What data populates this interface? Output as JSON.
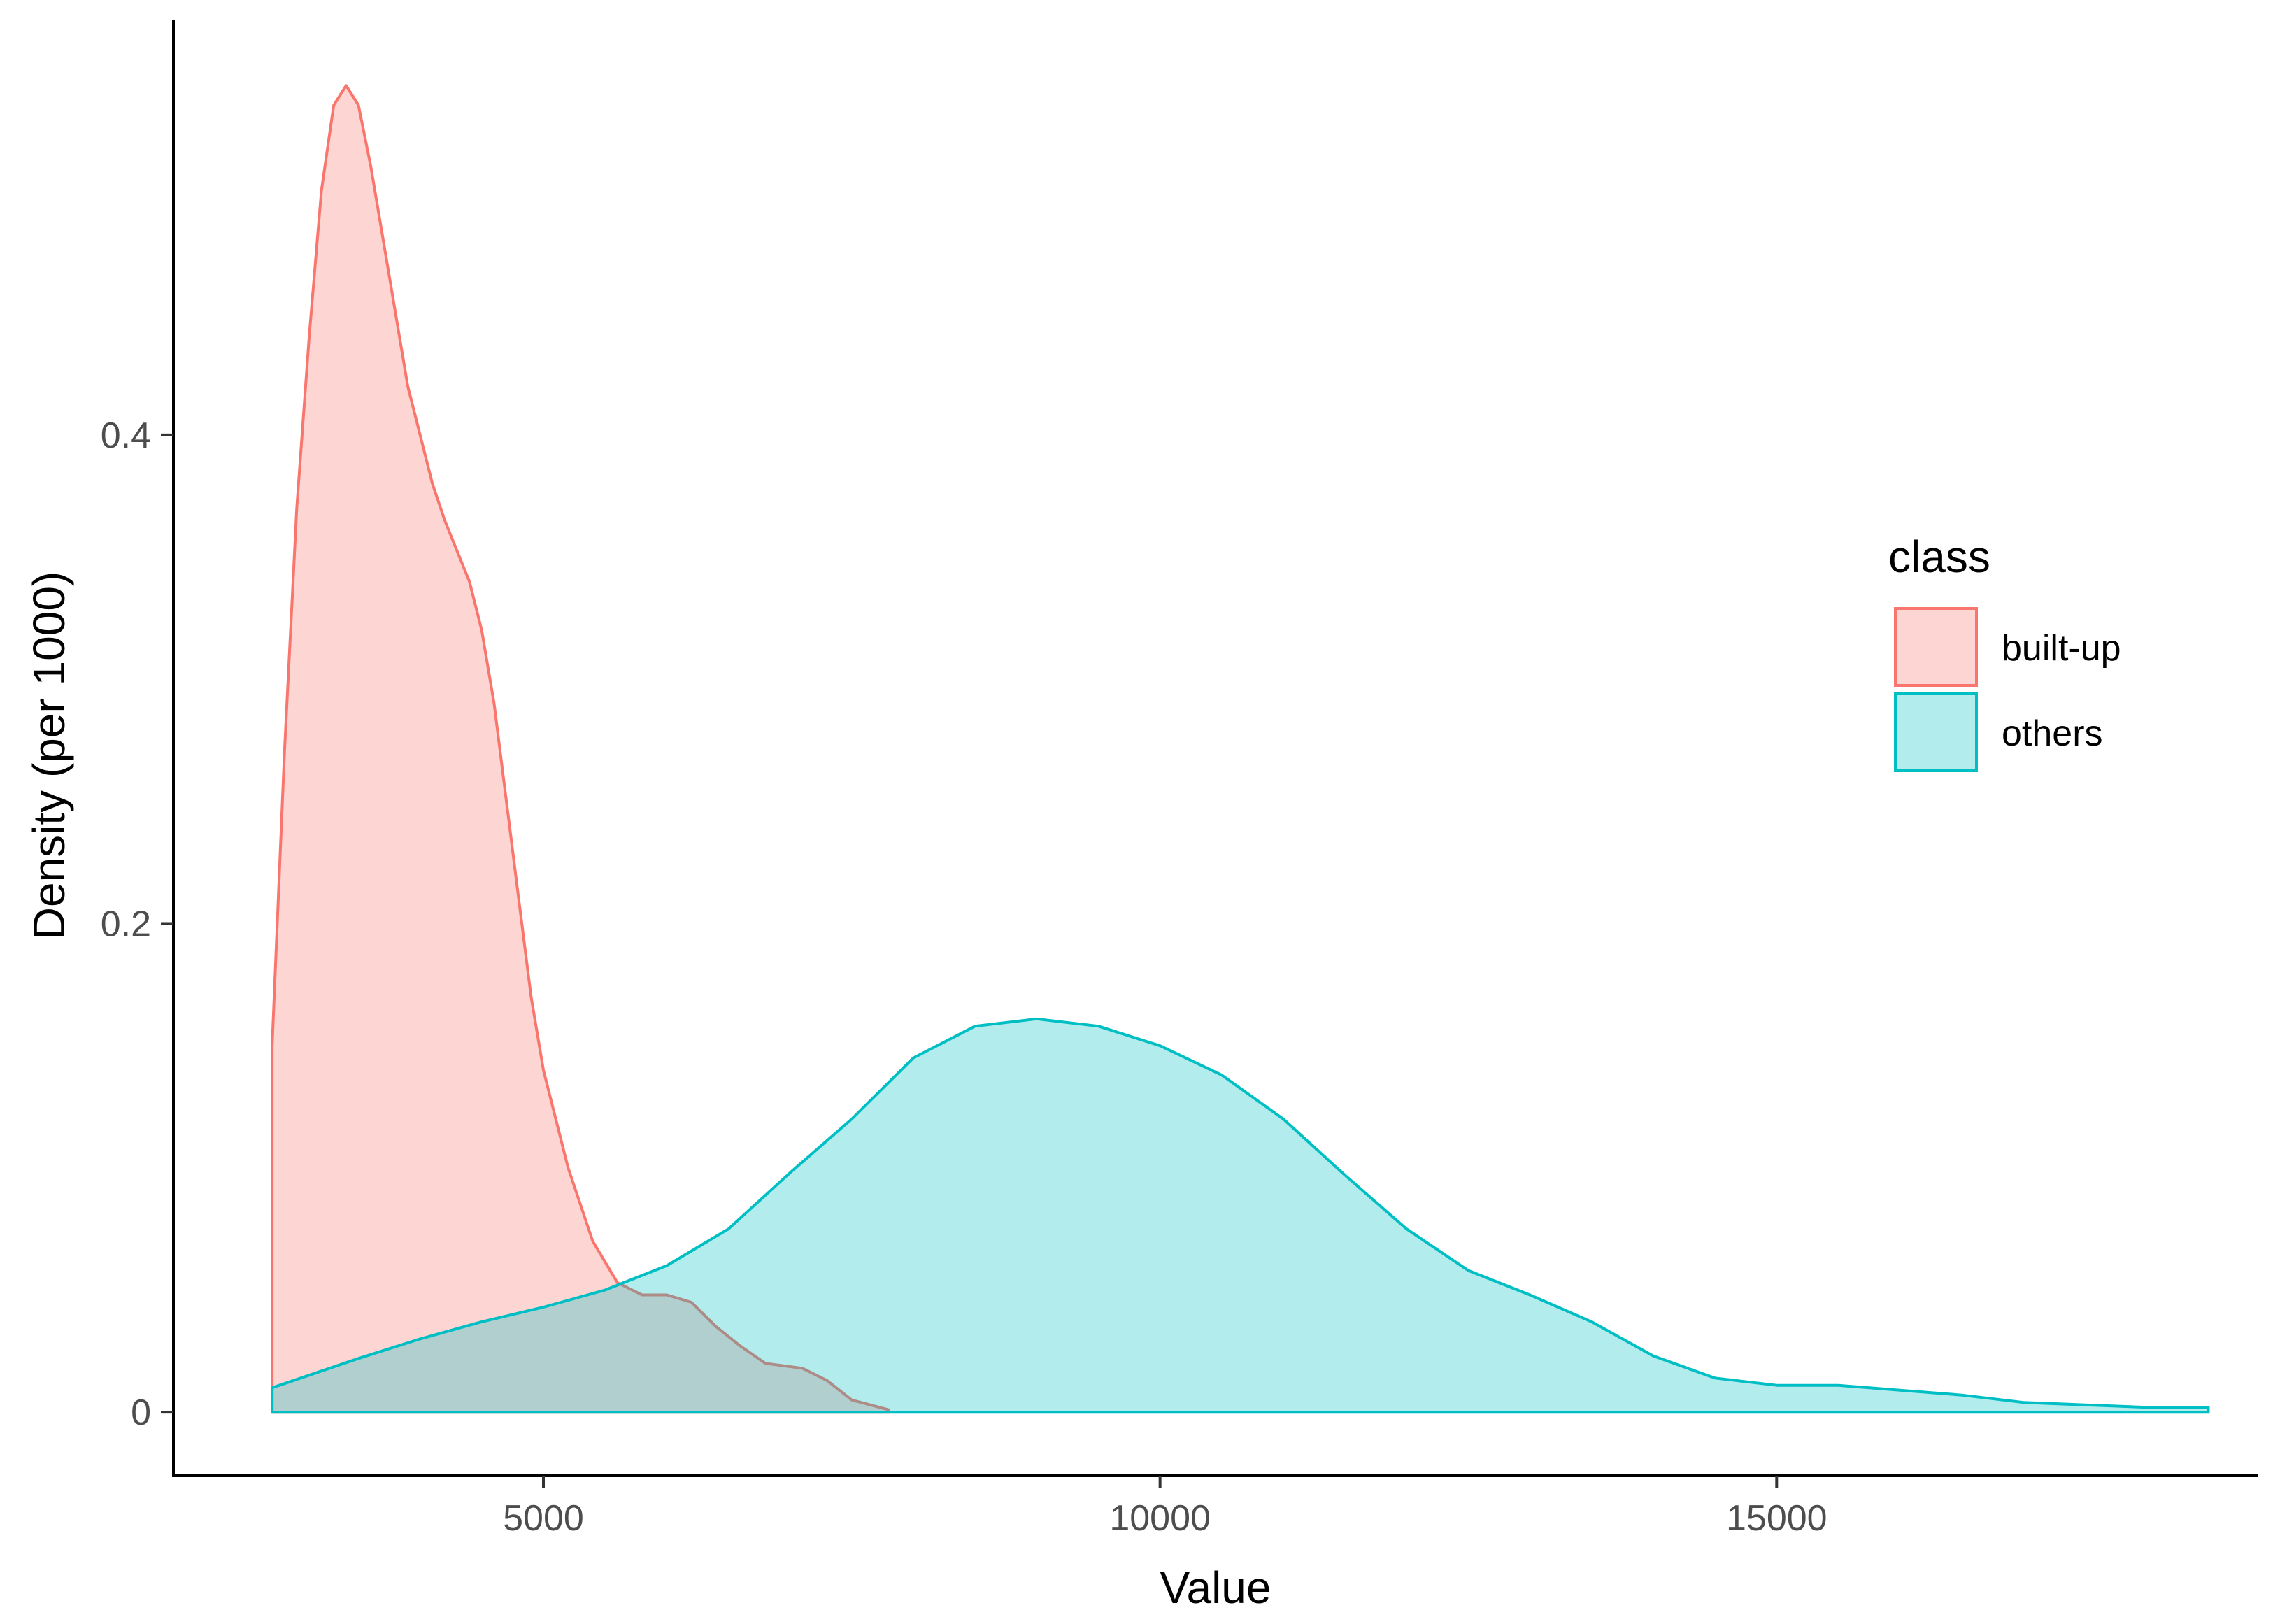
{
  "chart_data": {
    "type": "area",
    "xlabel": "Value",
    "ylabel": "Density (per 1000)",
    "xlim": [
      2000,
      18900
    ],
    "ylim": [
      -0.026,
      0.57
    ],
    "x_ticks": [
      5000,
      10000,
      15000
    ],
    "x_tick_labels": [
      "5000",
      "10000",
      "15000"
    ],
    "y_ticks": [
      0,
      0.2,
      0.4
    ],
    "y_tick_labels": [
      "0",
      "0.2",
      "0.4"
    ],
    "grid": false,
    "legend": {
      "title": "class",
      "position": "right"
    },
    "series": [
      {
        "name": "built-up",
        "fill": "#F8766D",
        "stroke": "#F8766D",
        "fill_opacity": 0.3,
        "points": [
          [
            2800,
            0.0
          ],
          [
            2800,
            0.15
          ],
          [
            2850,
            0.21
          ],
          [
            2900,
            0.27
          ],
          [
            3000,
            0.37
          ],
          [
            3100,
            0.44
          ],
          [
            3200,
            0.5
          ],
          [
            3300,
            0.535
          ],
          [
            3400,
            0.543
          ],
          [
            3500,
            0.535
          ],
          [
            3600,
            0.51
          ],
          [
            3700,
            0.48
          ],
          [
            3800,
            0.45
          ],
          [
            3900,
            0.42
          ],
          [
            4000,
            0.4
          ],
          [
            4100,
            0.38
          ],
          [
            4200,
            0.365
          ],
          [
            4400,
            0.34
          ],
          [
            4500,
            0.32
          ],
          [
            4600,
            0.29
          ],
          [
            4700,
            0.25
          ],
          [
            4800,
            0.21
          ],
          [
            4900,
            0.17
          ],
          [
            5000,
            0.14
          ],
          [
            5200,
            0.1
          ],
          [
            5400,
            0.07
          ],
          [
            5600,
            0.053
          ],
          [
            5800,
            0.048
          ],
          [
            6000,
            0.048
          ],
          [
            6200,
            0.045
          ],
          [
            6400,
            0.035
          ],
          [
            6600,
            0.027
          ],
          [
            6800,
            0.02
          ],
          [
            7100,
            0.018
          ],
          [
            7300,
            0.013
          ],
          [
            7500,
            0.005
          ],
          [
            7800,
            0.001
          ]
        ]
      },
      {
        "name": "others",
        "fill": "#00BFC4",
        "stroke": "#00BFC4",
        "fill_opacity": 0.3,
        "points": [
          [
            2800,
            0.0
          ],
          [
            2800,
            0.01
          ],
          [
            3500,
            0.022
          ],
          [
            4000,
            0.03
          ],
          [
            4500,
            0.037
          ],
          [
            5000,
            0.043
          ],
          [
            5500,
            0.05
          ],
          [
            6000,
            0.06
          ],
          [
            6500,
            0.075
          ],
          [
            7000,
            0.098
          ],
          [
            7500,
            0.12
          ],
          [
            8000,
            0.145
          ],
          [
            8500,
            0.158
          ],
          [
            9000,
            0.161
          ],
          [
            9500,
            0.158
          ],
          [
            10000,
            0.15
          ],
          [
            10500,
            0.138
          ],
          [
            11000,
            0.12
          ],
          [
            11500,
            0.097
          ],
          [
            12000,
            0.075
          ],
          [
            12500,
            0.058
          ],
          [
            13000,
            0.048
          ],
          [
            13500,
            0.037
          ],
          [
            14000,
            0.023
          ],
          [
            14500,
            0.014
          ],
          [
            15000,
            0.011
          ],
          [
            15500,
            0.011
          ],
          [
            16000,
            0.009
          ],
          [
            16500,
            0.007
          ],
          [
            17000,
            0.004
          ],
          [
            17500,
            0.003
          ],
          [
            18000,
            0.002
          ],
          [
            18500,
            0.002
          ]
        ]
      }
    ]
  }
}
